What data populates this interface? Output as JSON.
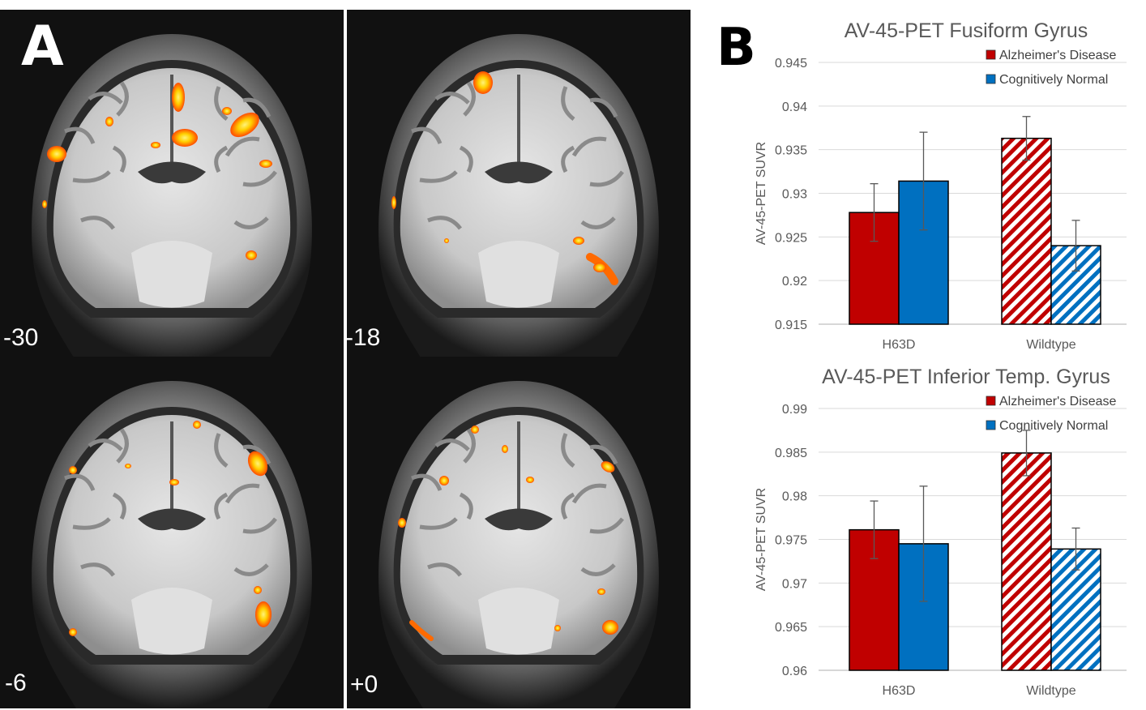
{
  "panel_a": {
    "label": "A",
    "slices": [
      {
        "label": "-30"
      },
      {
        "label": "-18"
      },
      {
        "label": "-6"
      },
      {
        "label": "+0"
      }
    ]
  },
  "panel_b": {
    "label": "B"
  },
  "colors": {
    "alzheimers": "#c00000",
    "normal": "#0070c0",
    "brain_bg": "#111111",
    "hotspot_outer": "#ff5a00",
    "hotspot_inner": "#ffe800"
  },
  "chart_data": [
    {
      "type": "bar",
      "title": "AV-45-PET Fusiform Gyrus",
      "ylabel": "AV-45-PET SUVR",
      "xlabel": "",
      "categories": [
        "H63D",
        "Wildtype"
      ],
      "ylim": [
        0.915,
        0.945
      ],
      "yticks": [
        "0.915",
        "0.92",
        "0.925",
        "0.93",
        "0.935",
        "0.94",
        "0.945"
      ],
      "legend_position": "top-right",
      "grid": true,
      "series": [
        {
          "name": "Alzheimer's Disease",
          "values": [
            0.9278,
            0.9363
          ],
          "errors": [
            0.0033,
            0.0025
          ]
        },
        {
          "name": "Cognitively Normal",
          "values": [
            0.9314,
            0.924
          ],
          "errors": [
            0.0056,
            0.0029
          ]
        }
      ]
    },
    {
      "type": "bar",
      "title": "AV-45-PET Inferior Temp. Gyrus",
      "ylabel": "AV-45-PET SUVR",
      "xlabel": "",
      "categories": [
        "H63D",
        "Wildtype"
      ],
      "ylim": [
        0.96,
        0.99
      ],
      "yticks": [
        "0.96",
        "0.965",
        "0.97",
        "0.975",
        "0.98",
        "0.985",
        "0.99"
      ],
      "legend_position": "top-right",
      "grid": true,
      "series": [
        {
          "name": "Alzheimer's Disease",
          "values": [
            0.9761,
            0.9849
          ],
          "errors": [
            0.0033,
            0.0026
          ]
        },
        {
          "name": "Cognitively Normal",
          "values": [
            0.9745,
            0.9739
          ],
          "errors": [
            0.0066,
            0.0024
          ]
        }
      ]
    }
  ]
}
